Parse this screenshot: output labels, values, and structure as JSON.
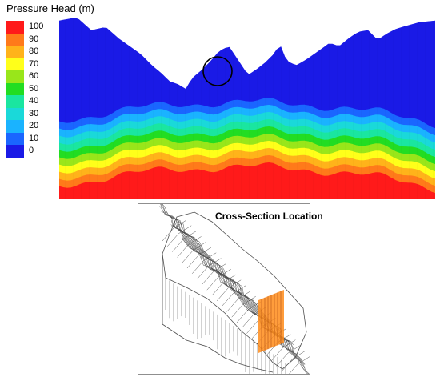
{
  "legend": {
    "title": "Pressure Head (m)",
    "levels": [
      {
        "label": "100",
        "color": "#ff1a1a"
      },
      {
        "label": "90",
        "color": "#ff7a1a"
      },
      {
        "label": "80",
        "color": "#ffb31a"
      },
      {
        "label": "70",
        "color": "#ffff1a"
      },
      {
        "label": "60",
        "color": "#99e61a"
      },
      {
        "label": "50",
        "color": "#22dd22"
      },
      {
        "label": "40",
        "color": "#1ae6a0"
      },
      {
        "label": "30",
        "color": "#1ad9d9"
      },
      {
        "label": "20",
        "color": "#1ab3ff"
      },
      {
        "label": "10",
        "color": "#1a66ff"
      },
      {
        "label": "0",
        "color": "#1a1ae6"
      }
    ]
  },
  "inset": {
    "title": "Cross-Section Location",
    "highlight_color": "#ff8c1a"
  }
}
